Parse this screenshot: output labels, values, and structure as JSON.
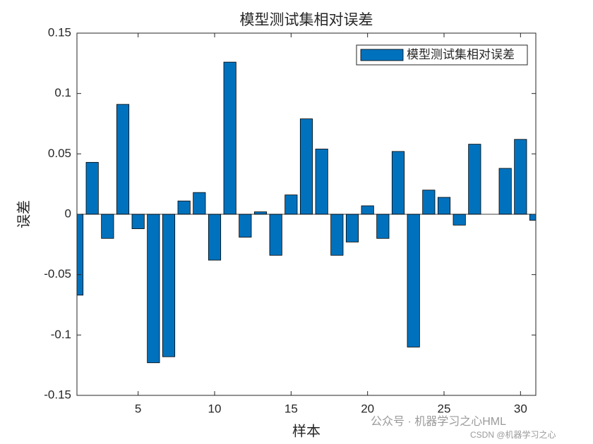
{
  "chart_data": {
    "type": "bar",
    "title": "模型测试集相对误差",
    "xlabel": "样本",
    "ylabel": "误差",
    "x": [
      1,
      2,
      3,
      4,
      5,
      6,
      7,
      8,
      9,
      10,
      11,
      12,
      13,
      14,
      15,
      16,
      17,
      18,
      19,
      20,
      21,
      22,
      23,
      24,
      25,
      26,
      27,
      28,
      29,
      30,
      31
    ],
    "series": [
      {
        "name": "模型测试集相对误差",
        "color": "#0072bd",
        "values": [
          -0.067,
          0.043,
          -0.02,
          0.091,
          -0.012,
          -0.123,
          -0.118,
          0.011,
          0.018,
          -0.038,
          0.126,
          -0.019,
          0.002,
          -0.034,
          0.016,
          0.079,
          0.054,
          -0.034,
          -0.023,
          0.007,
          -0.02,
          0.052,
          -0.11,
          0.02,
          0.014,
          -0.009,
          0.058,
          0,
          0.038,
          0.062,
          -0.005
        ]
      }
    ],
    "xlim": [
      1,
      31
    ],
    "xticks": [
      5,
      10,
      15,
      20,
      25,
      30
    ],
    "ylim": [
      -0.15,
      0.15
    ],
    "yticks": [
      -0.15,
      -0.1,
      -0.05,
      0,
      0.05,
      0.1,
      0.15
    ],
    "legend_position": "upper right",
    "watermark": "公众号 · 机器学习之心HML",
    "watermark_sub": "CSDN @机器学习之心"
  }
}
